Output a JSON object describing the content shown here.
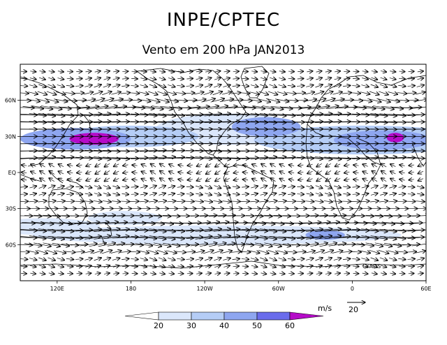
{
  "header": {
    "title": "INPE/CPTEC",
    "subtitle": "Vento em 200 hPa JAN2013"
  },
  "axes": {
    "lon_labels": [
      "120E",
      "180",
      "120W",
      "60W",
      "0",
      "60E"
    ],
    "lat_labels": [
      "60N",
      "30N",
      "EQ",
      "30S",
      "60S"
    ]
  },
  "colorbar": {
    "units": "m/s",
    "levels": [
      "20",
      "30",
      "40",
      "50",
      "60"
    ],
    "colors": [
      "#ffffff",
      "#dbe7fb",
      "#b5cdf6",
      "#8ea6f0",
      "#6a6cec",
      "#b50bc8"
    ]
  },
  "legend": {
    "reference_label": "20",
    "map_credit": "GrADS"
  },
  "chart_data": {
    "type": "vector-field",
    "title": "Vento em 200 hPa JAN2013",
    "variable": "wind speed at 200 hPa",
    "units": "m/s",
    "shading_levels": [
      20,
      30,
      40,
      50,
      60
    ],
    "reference_vector": 20,
    "lon_range": [
      90,
      420
    ],
    "lat_range": [
      -90,
      90
    ],
    "jets": [
      {
        "lon": 150,
        "lat": 28,
        "rx": 20,
        "ry": 5,
        "speed": 65
      },
      {
        "lon": 135,
        "lat": 28,
        "rx": 45,
        "ry": 9,
        "speed": 45
      },
      {
        "lon": 180,
        "lat": 30,
        "rx": 55,
        "ry": 9,
        "speed": 32
      },
      {
        "lon": 290,
        "lat": 38,
        "rx": 28,
        "ry": 8,
        "speed": 43
      },
      {
        "lon": 260,
        "lat": 36,
        "rx": 60,
        "ry": 13,
        "speed": 28
      },
      {
        "lon": 395,
        "lat": 29,
        "rx": 7,
        "ry": 4,
        "speed": 65
      },
      {
        "lon": 385,
        "lat": 27,
        "rx": 40,
        "ry": 8,
        "speed": 46
      },
      {
        "lon": 370,
        "lat": 27,
        "rx": 90,
        "ry": 12,
        "speed": 30
      },
      {
        "lon": 338,
        "lat": -52,
        "rx": 16,
        "ry": 4,
        "speed": 42
      },
      {
        "lon": 250,
        "lat": -52,
        "rx": 150,
        "ry": 8,
        "speed": 29
      },
      {
        "lon": 110,
        "lat": -45,
        "rx": 45,
        "ry": 7,
        "speed": 24
      },
      {
        "lon": 175,
        "lat": -38,
        "rx": 30,
        "ry": 6,
        "speed": 22
      }
    ]
  }
}
